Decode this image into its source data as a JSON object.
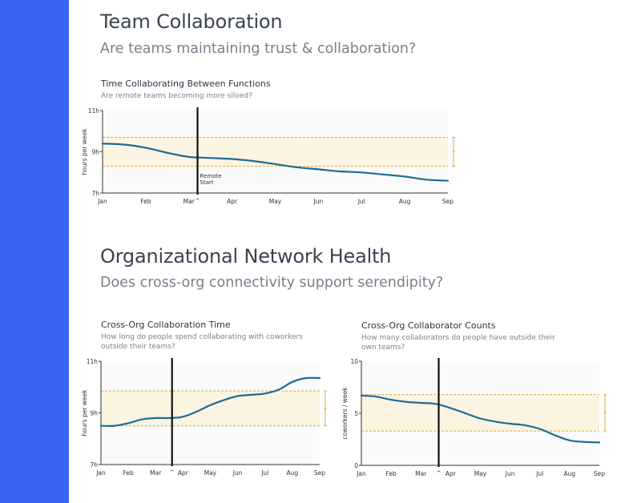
{
  "colors": {
    "sidebar": "#3a63f0",
    "line": "#1d6b93",
    "band_fill": "#fbf4e0",
    "band_border": "#e3a93a",
    "marker": "#111111",
    "plot_bg": "#fafafa"
  },
  "sections": {
    "team": {
      "title": "Team Collaboration",
      "subtitle": "Are teams maintaining trust & collaboration?"
    },
    "network": {
      "title": "Organizational Network Health",
      "subtitle": "Does cross-org connectivity support serendipity?"
    }
  },
  "chart_data": [
    {
      "id": "time-collab",
      "type": "line",
      "title": "Time Collaborating Between Functions",
      "subtitle_lines": [
        "Are remote teams becoming more siloed?"
      ],
      "ylabel": "hours per week",
      "ylim": [
        7,
        11
      ],
      "yticks": [
        7,
        9,
        11
      ],
      "ytick_labels": [
        "7h",
        "9h",
        "11h"
      ],
      "xlim": [
        0,
        8
      ],
      "categories": [
        "Jan",
        "Feb",
        "Mar",
        "Apr",
        "May",
        "Jun",
        "Jul",
        "Aug",
        "Sep"
      ],
      "x": [
        0,
        0.5,
        1,
        1.5,
        2,
        2.5,
        3,
        3.5,
        4,
        4.5,
        5,
        5.5,
        6,
        6.5,
        7,
        7.5,
        8
      ],
      "values": [
        9.4,
        9.35,
        9.2,
        8.95,
        8.75,
        8.7,
        8.65,
        8.55,
        8.4,
        8.25,
        8.15,
        8.05,
        8.0,
        7.9,
        7.8,
        7.65,
        7.6
      ],
      "band": [
        8.3,
        9.7
      ],
      "marker_x": 2.2,
      "marker_label": [
        "Remote",
        "Start"
      ]
    },
    {
      "id": "cross-org-time",
      "type": "line",
      "title": "Cross-Org Collaboration Time",
      "subtitle_lines": [
        "How long do people spend collaborating with coworkers",
        "outside their teams?"
      ],
      "ylabel": "hours per week",
      "ylim": [
        7,
        11
      ],
      "yticks": [
        7,
        9,
        11
      ],
      "ytick_labels": [
        "7h",
        "9h",
        "11h"
      ],
      "xlim": [
        0,
        8
      ],
      "categories": [
        "Jan",
        "Feb",
        "Mar",
        "Apr",
        "May",
        "Jun",
        "Jul",
        "Aug",
        "Sep"
      ],
      "x": [
        0,
        0.5,
        1,
        1.5,
        2,
        2.5,
        3,
        3.5,
        4,
        4.5,
        5,
        5.5,
        6,
        6.5,
        7,
        7.5,
        8
      ],
      "values": [
        8.5,
        8.5,
        8.6,
        8.75,
        8.8,
        8.8,
        8.85,
        9.05,
        9.3,
        9.5,
        9.65,
        9.7,
        9.75,
        9.9,
        10.2,
        10.35,
        10.35
      ],
      "band": [
        8.5,
        9.85
      ],
      "marker_x": 2.6,
      "marker_label": []
    },
    {
      "id": "cross-org-counts",
      "type": "line",
      "title": "Cross-Org Collaborator Counts",
      "subtitle_lines": [
        "How many collaborators do people have outside their",
        "own teams?"
      ],
      "ylabel": "coworkers / week",
      "ylim": [
        0,
        10
      ],
      "yticks": [
        0,
        5,
        10
      ],
      "ytick_labels": [
        "0",
        "5",
        "10"
      ],
      "xlim": [
        0,
        8
      ],
      "categories": [
        "Jan",
        "Feb",
        "Mar",
        "Apr",
        "May",
        "Jun",
        "Jul",
        "Aug",
        "Sep"
      ],
      "x": [
        0,
        0.5,
        1,
        1.5,
        2,
        2.5,
        3,
        3.5,
        4,
        4.5,
        5,
        5.5,
        6,
        6.5,
        7,
        7.5,
        8
      ],
      "values": [
        6.7,
        6.6,
        6.3,
        6.1,
        6.0,
        5.9,
        5.5,
        5.0,
        4.5,
        4.2,
        4.0,
        3.85,
        3.5,
        2.9,
        2.4,
        2.25,
        2.2
      ],
      "band": [
        3.3,
        6.8
      ],
      "marker_x": 2.6,
      "marker_label": []
    }
  ]
}
